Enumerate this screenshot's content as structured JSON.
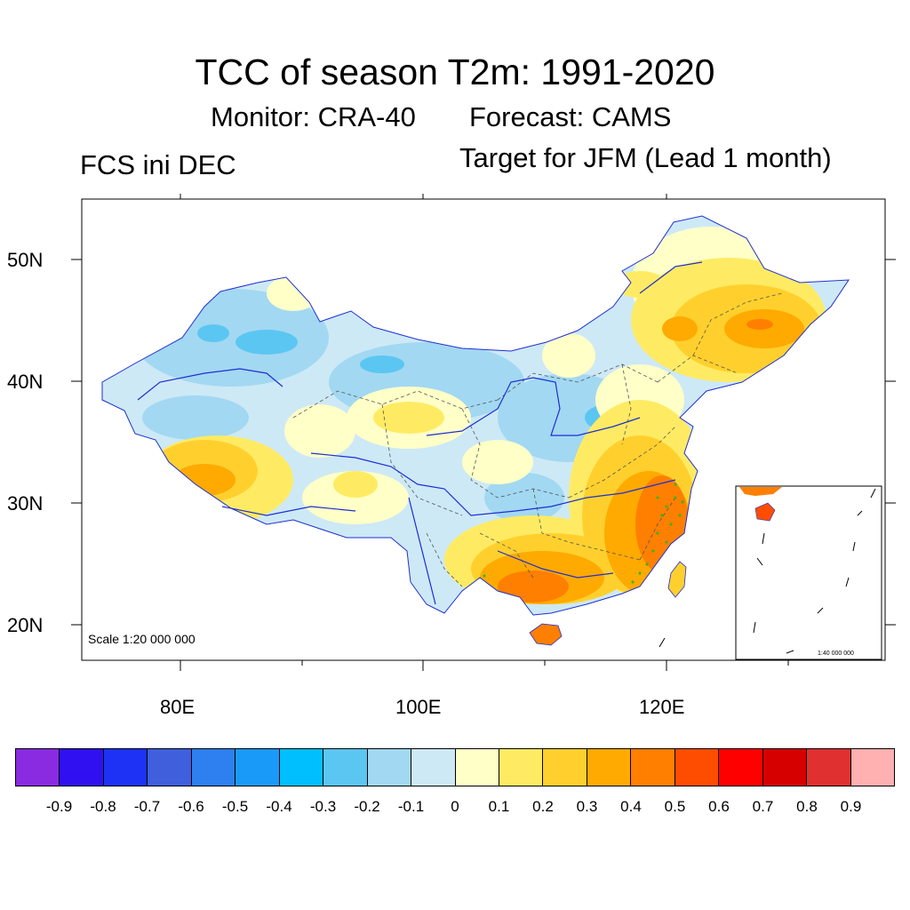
{
  "title": "TCC of season T2m: 1991-2020",
  "subtitle_monitor": "Monitor: CRA-40",
  "subtitle_forecast": "Forecast: CAMS",
  "left_label": "FCS ini DEC",
  "right_label": "Target for JFM (Lead 1 month)",
  "lat_labels": [
    "50N",
    "40N",
    "30N",
    "20N"
  ],
  "lon_labels": [
    "80E",
    "100E",
    "120E"
  ],
  "scale_main": "Scale 1:20 000 000",
  "scale_inset": "1:40 000 000",
  "colorbar": {
    "labels": [
      "-0.9",
      "-0.8",
      "-0.7",
      "-0.6",
      "-0.5",
      "-0.4",
      "-0.3",
      "-0.2",
      "-0.1",
      "0",
      "0.1",
      "0.2",
      "0.3",
      "0.4",
      "0.5",
      "0.6",
      "0.7",
      "0.8",
      "0.9"
    ],
    "colors": [
      "#8a2be2",
      "#3010f0",
      "#1e32f5",
      "#3f5fdd",
      "#2e7ff0",
      "#1a9af8",
      "#00bfff",
      "#5cc6f2",
      "#a2d8f2",
      "#cde9f6",
      "#ffffc8",
      "#ffeb63",
      "#ffd02d",
      "#ffaa00",
      "#ff7f00",
      "#ff4d00",
      "#ff0000",
      "#d60000",
      "#e03030",
      "#ffb0b0"
    ]
  },
  "colors": {
    "blue_mid": "#5cc6f2",
    "blue_light": "#a2d8f2",
    "blue_pale": "#cde9f6",
    "yellow_pale": "#ffffc8",
    "yellow": "#ffeb63",
    "yellow_deep": "#ffd02d",
    "orange": "#ffaa00",
    "orange_deep": "#ff7f00",
    "red_orange": "#ff4d00",
    "river": "#1f2fd0",
    "significance_dots": "#22bb22"
  }
}
